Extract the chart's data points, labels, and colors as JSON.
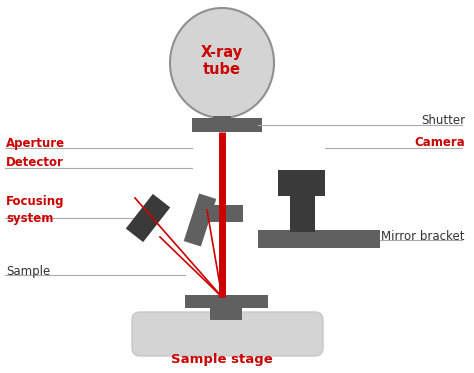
{
  "background_color": "#ffffff",
  "dark_gray": "#606060",
  "darker_gray": "#3a3a3a",
  "mid_gray": "#909090",
  "light_gray": "#c8c8c8",
  "very_light_gray": "#d4d4d4",
  "red": "#cc0000",
  "black": "#333333",
  "figsize": [
    4.74,
    3.73
  ],
  "dpi": 100,
  "labels": {
    "xray_tube": "X-ray\ntube",
    "aperture": "Aperture",
    "detector": "Detector",
    "focusing_system": "Focusing\nsystem",
    "sample": "Sample",
    "shutter": "Shutter",
    "camera": "Camera",
    "mirror_bracket": "Mirror bracket",
    "sample_stage": "Sample stage"
  }
}
